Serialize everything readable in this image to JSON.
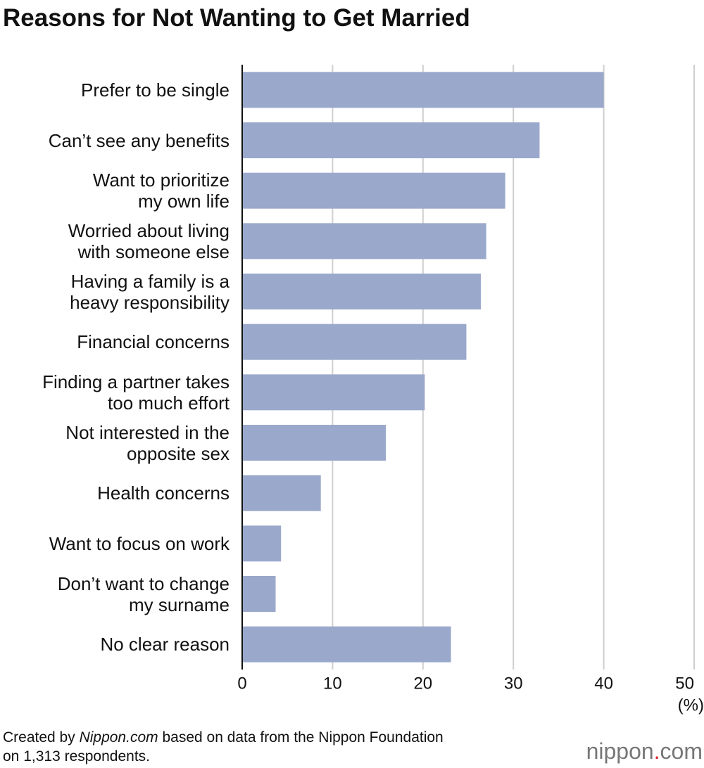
{
  "chart_data": {
    "type": "bar",
    "orientation": "horizontal",
    "title": "Reasons for Not Wanting to Get Married",
    "categories": [
      "Prefer to be single",
      "Can’t see any benefits",
      "Want to prioritize\nmy own life",
      "Worried about living\nwith someone else",
      "Having a family is a\nheavy responsibility",
      "Financial concerns",
      "Finding a partner takes\ntoo much effort",
      "Not interested in the\nopposite sex",
      "Health concerns",
      "Want to focus on work",
      "Don’t want to change\nmy surname",
      "No clear reason"
    ],
    "values": [
      40.0,
      32.9,
      29.1,
      27.0,
      26.4,
      24.8,
      20.2,
      15.9,
      8.7,
      4.3,
      3.7,
      23.1
    ],
    "color": "#9aa8cb",
    "xlim": [
      0,
      50
    ],
    "xticks": [
      0,
      10,
      20,
      30,
      40,
      50
    ],
    "x_unit": "(%)",
    "grid": true
  },
  "footer": {
    "note": [
      "Created by ",
      "Nippon.com",
      " based on data from the Nippon Foundation\non 1,313 respondents."
    ],
    "logo": [
      "nippon",
      ".",
      "com"
    ]
  }
}
